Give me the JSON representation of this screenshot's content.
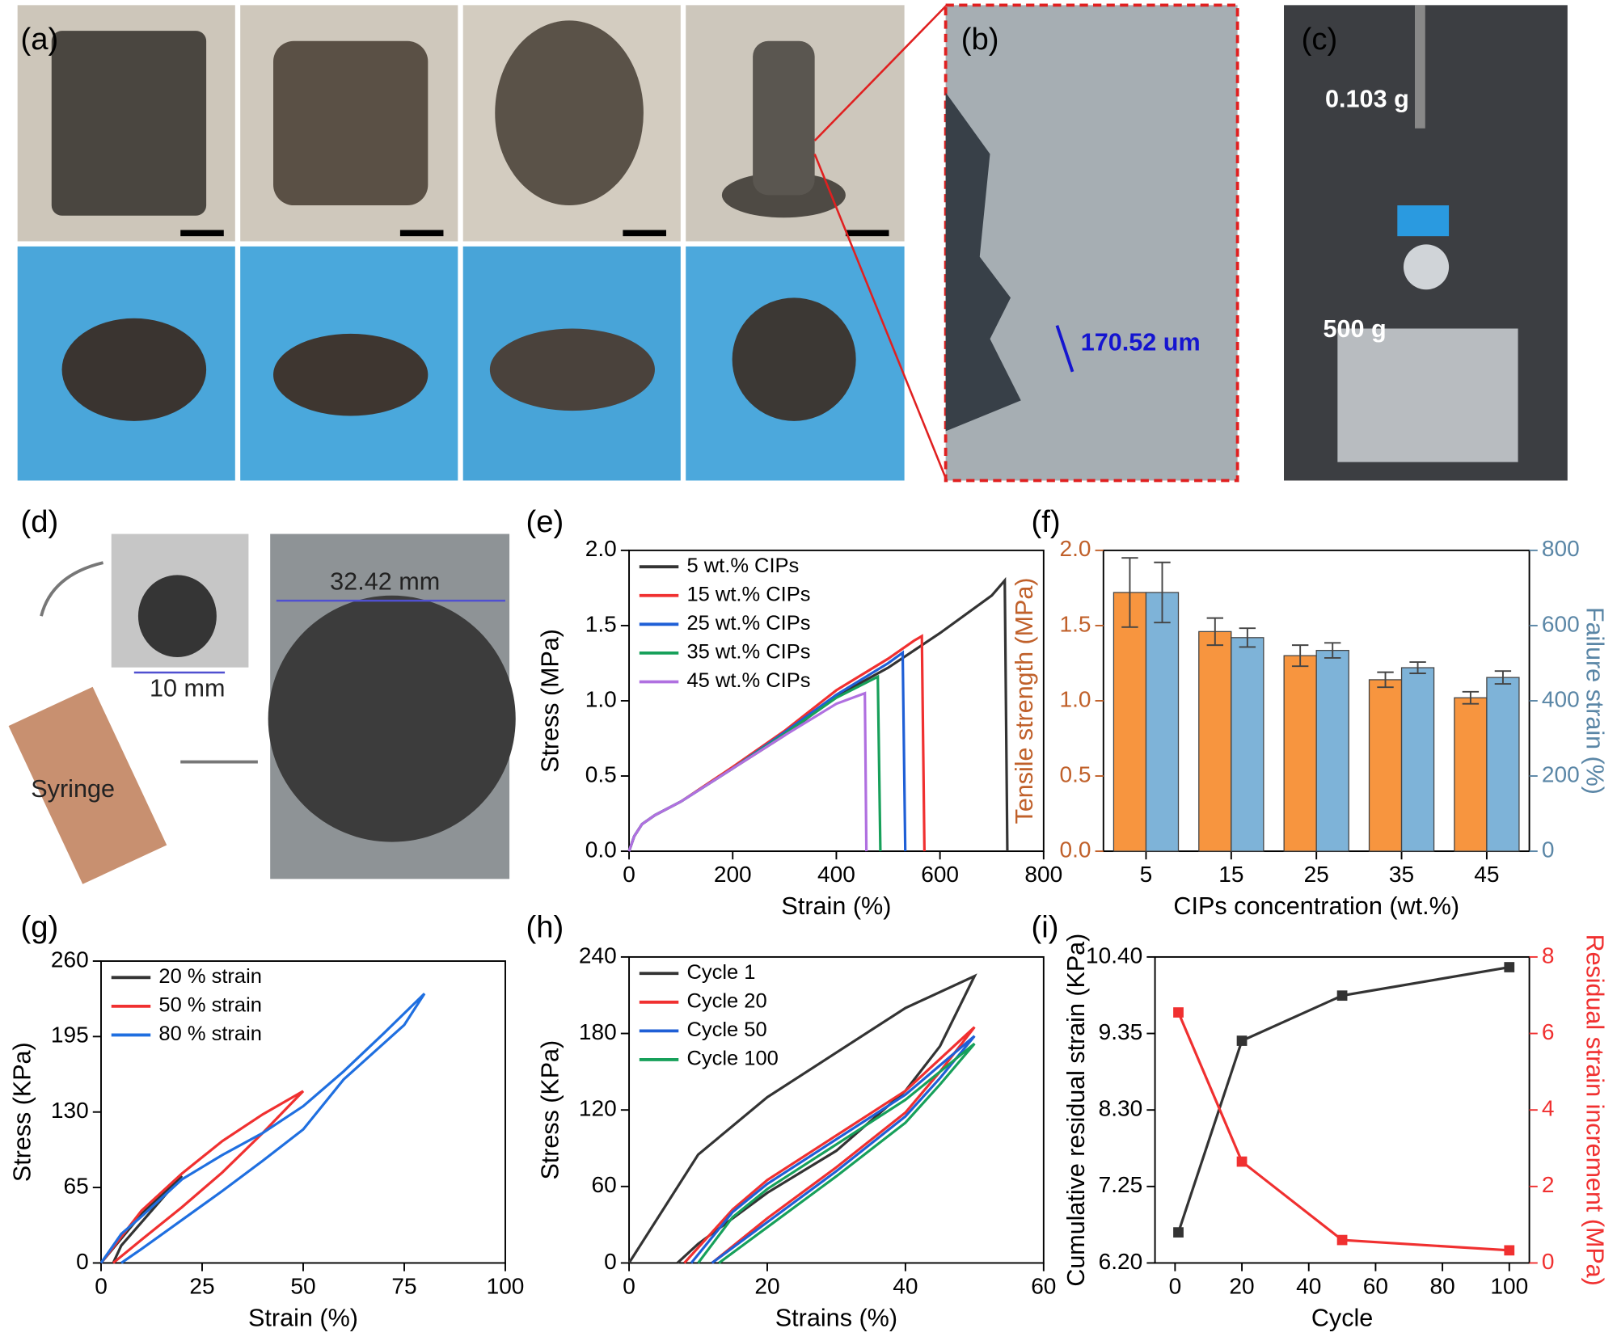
{
  "photos": {
    "panels": [
      "(a)",
      "(b)",
      "(c)",
      "(d)"
    ],
    "annotations": {
      "scale": "170.52 um",
      "clip_mass": "0.103 g",
      "weight": "500 g",
      "width": "10 mm",
      "diameter": "32.42 mm",
      "syringe": "Syringe"
    }
  },
  "chart_data": [
    {
      "type": "line",
      "panel": "(e)",
      "xlabel": "Strain (%)",
      "ylabel": "Stress (MPa)",
      "xlim": [
        0,
        800
      ],
      "ylim": [
        0,
        2
      ],
      "xticks": [
        0,
        200,
        400,
        600,
        800
      ],
      "yticks": [
        {
          "value": 0,
          "label": "0.0"
        },
        {
          "value": 0.5,
          "label": "0.5"
        },
        {
          "value": 1,
          "label": "1.0"
        },
        {
          "value": 1.5,
          "label": "1.5"
        },
        {
          "value": 2,
          "label": "2.0"
        }
      ],
      "legend": "upper left",
      "series": [
        {
          "name": "5 wt.% CIPs",
          "color": "#333333",
          "x": [
            0,
            10,
            25,
            50,
            100,
            200,
            300,
            400,
            500,
            600,
            700,
            725,
            730
          ],
          "values": [
            0,
            0.1,
            0.18,
            0.24,
            0.33,
            0.55,
            0.77,
            1.03,
            1.22,
            1.45,
            1.7,
            1.8,
            0
          ]
        },
        {
          "name": "15 wt.% CIPs",
          "color": "#f03030",
          "x": [
            0,
            10,
            25,
            50,
            100,
            200,
            300,
            400,
            500,
            550,
            565,
            570
          ],
          "values": [
            0,
            0.1,
            0.18,
            0.24,
            0.33,
            0.56,
            0.8,
            1.07,
            1.28,
            1.4,
            1.43,
            0
          ]
        },
        {
          "name": "25 wt.% CIPs",
          "color": "#1f5fd6",
          "x": [
            0,
            10,
            25,
            50,
            100,
            200,
            300,
            400,
            500,
            528,
            533
          ],
          "values": [
            0,
            0.1,
            0.18,
            0.24,
            0.33,
            0.55,
            0.79,
            1.04,
            1.25,
            1.32,
            0
          ]
        },
        {
          "name": "35 wt.% CIPs",
          "color": "#17a05a",
          "x": [
            0,
            10,
            25,
            50,
            100,
            200,
            300,
            400,
            480,
            485
          ],
          "values": [
            0,
            0.1,
            0.18,
            0.24,
            0.33,
            0.55,
            0.78,
            1.02,
            1.16,
            0
          ]
        },
        {
          "name": "45 wt.% CIPs",
          "color": "#b070e0",
          "x": [
            0,
            10,
            25,
            50,
            100,
            200,
            300,
            400,
            455,
            458
          ],
          "values": [
            0,
            0.1,
            0.18,
            0.24,
            0.33,
            0.55,
            0.77,
            0.98,
            1.05,
            0
          ]
        }
      ]
    },
    {
      "type": "bar",
      "panel": "(f)",
      "xlabel": "CIPs concentration (wt.%)",
      "ylabel": "Tensile strength (MPa)",
      "y2label": "Failure strain (%)",
      "ylabel_color": "#c0602a",
      "y2label_color": "#5a86a6",
      "categories": [
        "5",
        "15",
        "25",
        "35",
        "45"
      ],
      "ylim": [
        0,
        2
      ],
      "y2lim": [
        0,
        800
      ],
      "yticks": [
        {
          "value": 0,
          "label": "0.0"
        },
        {
          "value": 0.5,
          "label": "0.5"
        },
        {
          "value": 1,
          "label": "1.0"
        },
        {
          "value": 1.5,
          "label": "1.5"
        },
        {
          "value": 2,
          "label": "2.0"
        }
      ],
      "y2ticks": [
        0,
        200,
        400,
        600,
        800
      ],
      "series": [
        {
          "color": "#f7953f",
          "values": [
            1.72,
            1.46,
            1.3,
            1.14,
            1.02
          ],
          "errors": [
            0.23,
            0.09,
            0.07,
            0.05,
            0.04
          ]
        },
        {
          "color": "#7eb3d8",
          "axis": "y2",
          "values": [
            688,
            568,
            534,
            488,
            462
          ],
          "errors": [
            80,
            25,
            20,
            15,
            17
          ]
        }
      ]
    },
    {
      "type": "line",
      "panel": "(g)",
      "xlabel": "Strain (%)",
      "ylabel": "Stress (KPa)",
      "xlim": [
        0,
        100
      ],
      "ylim": [
        0,
        260
      ],
      "xticks": [
        0,
        25,
        50,
        75,
        100
      ],
      "yticks": [
        0,
        65,
        130,
        195,
        260
      ],
      "legend": "upper left",
      "series": [
        {
          "name": "20 % strain",
          "color": "#333333",
          "x": [
            0,
            10,
            20,
            15,
            10,
            5,
            3
          ],
          "values": [
            0,
            42,
            75,
            55,
            35,
            15,
            0
          ]
        },
        {
          "name": "50 % strain",
          "color": "#f03030",
          "x": [
            0,
            10,
            20,
            30,
            40,
            50,
            40,
            30,
            20,
            10,
            3
          ],
          "values": [
            0,
            45,
            77,
            105,
            128,
            148,
            112,
            78,
            48,
            20,
            0
          ]
        },
        {
          "name": "80 % strain",
          "color": "#1f6fe0",
          "x": [
            0,
            5,
            10,
            20,
            30,
            40,
            50,
            60,
            70,
            80,
            75,
            60,
            50,
            40,
            30,
            20,
            10,
            5
          ],
          "values": [
            0,
            25,
            40,
            72,
            93,
            112,
            135,
            165,
            198,
            232,
            205,
            158,
            115,
            88,
            62,
            37,
            12,
            0
          ]
        }
      ]
    },
    {
      "type": "line",
      "panel": "(h)",
      "xlabel": "Strains (%)",
      "ylabel": "Stress (KPa)",
      "xlim": [
        0,
        60
      ],
      "ylim": [
        0,
        240
      ],
      "xticks": [
        0,
        20,
        40,
        60
      ],
      "yticks": [
        0,
        60,
        120,
        180,
        240
      ],
      "legend": "upper left",
      "series": [
        {
          "name": "Cycle 1",
          "color": "#333333",
          "x": [
            0,
            10,
            20,
            30,
            40,
            50,
            45,
            40,
            30,
            20,
            10,
            7
          ],
          "values": [
            0,
            85,
            130,
            165,
            200,
            225,
            170,
            135,
            88,
            55,
            15,
            0
          ]
        },
        {
          "name": "Cycle 20",
          "color": "#f03030",
          "x": [
            8,
            15,
            20,
            30,
            40,
            50,
            45,
            40,
            30,
            20,
            12
          ],
          "values": [
            0,
            42,
            65,
            100,
            135,
            185,
            150,
            118,
            75,
            35,
            0
          ]
        },
        {
          "name": "Cycle 50",
          "color": "#1f5fd6",
          "x": [
            9,
            15,
            20,
            30,
            40,
            50,
            45,
            40,
            30,
            20,
            12
          ],
          "values": [
            0,
            40,
            62,
            97,
            132,
            178,
            145,
            115,
            72,
            32,
            0
          ]
        },
        {
          "name": "Cycle 100",
          "color": "#17a05a",
          "x": [
            10,
            15,
            20,
            30,
            40,
            50,
            45,
            40,
            30,
            20,
            13
          ],
          "values": [
            0,
            36,
            58,
            93,
            128,
            172,
            140,
            110,
            68,
            28,
            0
          ]
        }
      ]
    },
    {
      "type": "line",
      "panel": "(i)",
      "markers": true,
      "xlabel": "Cycle",
      "ylabel": "Cumulative residual strain (KPa)",
      "y2label": "Residual strain increment (MPa)",
      "ylabel_color": "#000000",
      "y2label_color": "#f03030",
      "xlim": [
        -6,
        106
      ],
      "ylim": [
        6.2,
        10.4
      ],
      "y2lim": [
        0,
        8
      ],
      "xticks": [
        0,
        20,
        40,
        60,
        80,
        100
      ],
      "yticks": [
        {
          "value": 6.2,
          "label": "6.20"
        },
        7.25,
        {
          "value": 8.3,
          "label": "8.30"
        },
        9.35,
        {
          "value": 10.4,
          "label": "10.40"
        }
      ],
      "y2ticks": [
        0,
        2,
        4,
        6,
        8
      ],
      "series": [
        {
          "color": "#333333",
          "x": [
            1,
            20,
            50,
            100
          ],
          "values": [
            6.62,
            9.25,
            9.87,
            10.26
          ]
        },
        {
          "color": "#f03030",
          "axis": "y2",
          "x": [
            1,
            20,
            50,
            100
          ],
          "values": [
            6.55,
            2.65,
            0.6,
            0.33
          ]
        }
      ]
    }
  ]
}
